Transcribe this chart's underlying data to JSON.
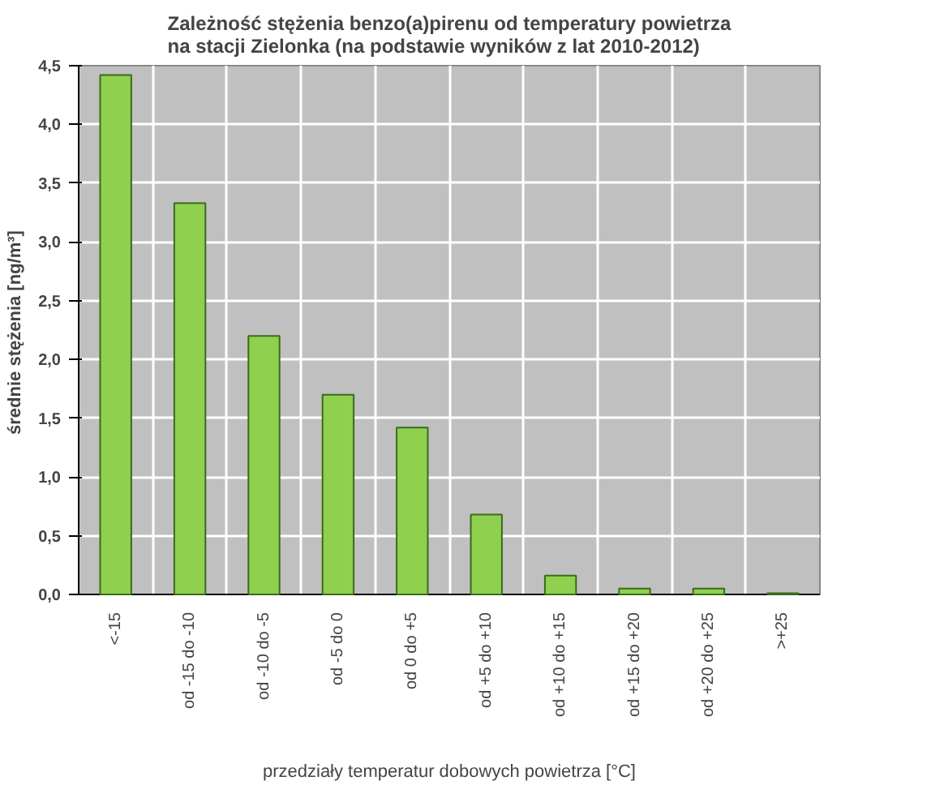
{
  "chart_data": {
    "type": "bar",
    "title": "Zależność stężenia benzo(a)pirenu od temperatury powietrza\nna stacji Zielonka (na podstawie wyników z lat 2010-2012)",
    "xlabel": "przedziały temperatur dobowych powietrza [°C]",
    "ylabel": "średnie stężenia  [ng/m³]",
    "categories": [
      "<-15",
      "od -15 do -10",
      "od -10 do -5",
      "od -5 do 0",
      "od 0 do +5",
      "od +5 do +10",
      "od +10 do +15",
      "od +15 do +20",
      "od +20 do +25",
      ">+25"
    ],
    "values": [
      4.42,
      3.33,
      2.2,
      1.7,
      1.42,
      0.68,
      0.16,
      0.05,
      0.05,
      0.01
    ],
    "color": "#8fd14f",
    "ylim": [
      0,
      4.5
    ],
    "yticks": [
      {
        "value": 0,
        "label": "0,0"
      },
      {
        "value": 0.5,
        "label": "0,5"
      },
      {
        "value": 1,
        "label": "1,0"
      },
      {
        "value": 1.5,
        "label": "1,5"
      },
      {
        "value": 2,
        "label": "2,0"
      },
      {
        "value": 2.5,
        "label": "2,5"
      },
      {
        "value": 3,
        "label": "3,0"
      },
      {
        "value": 3.5,
        "label": "3,5"
      },
      {
        "value": 4,
        "label": "4,0"
      },
      {
        "value": 4.5,
        "label": "4,5"
      }
    ],
    "grid": true
  }
}
